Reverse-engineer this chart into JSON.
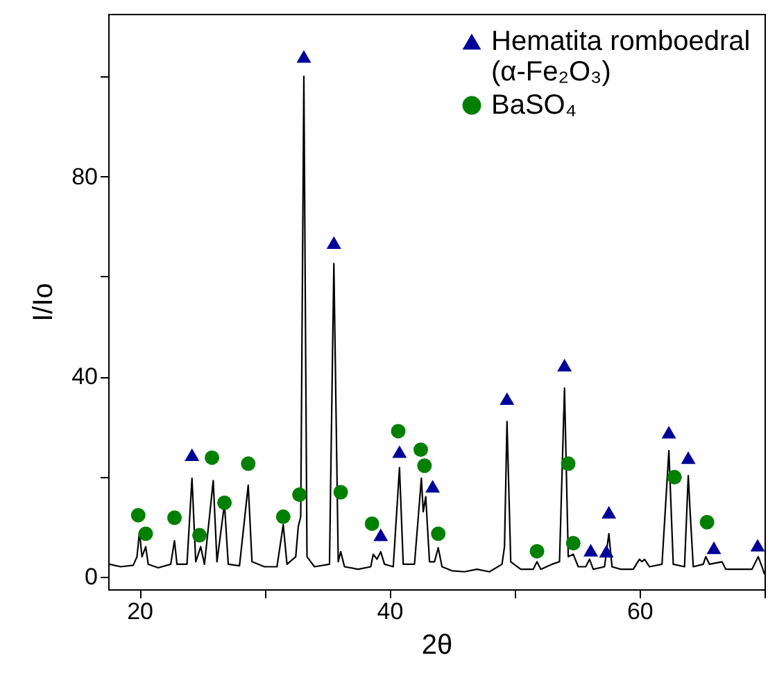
{
  "chart_data": {
    "type": "line",
    "xlabel": "2θ",
    "ylabel": "I/Io",
    "xlim": [
      17.5,
      70
    ],
    "xticks": [
      20,
      {
        "value": 30,
        "label": null
      },
      40,
      {
        "value": 50,
        "label": null
      },
      60,
      {
        "value": 70,
        "label": null
      }
    ],
    "ylim": [
      -2.5,
      112.5
    ],
    "yticks": [
      0,
      {
        "value": 20,
        "label": null
      },
      40,
      {
        "value": 60,
        "label": null
      },
      80,
      {
        "value": 100,
        "label": null
      }
    ],
    "grid": false,
    "legend": "top right",
    "series": [
      {
        "color": "#000000",
        "line_style": "solid",
        "x": [
          17.6,
          18.5,
          19.5,
          19.8,
          20.0,
          20.2,
          20.5,
          20.7,
          21.5,
          22.5,
          22.8,
          23.0,
          23.8,
          24.2,
          24.5,
          24.9,
          25.2,
          25.9,
          26.2,
          26.8,
          27.1,
          28.0,
          28.7,
          29.0,
          30,
          31.0,
          31.5,
          31.8,
          32.5,
          32.7,
          32.9,
          33.15,
          33.4,
          34,
          35.2,
          35.55,
          35.9,
          36.1,
          36.4,
          37.5,
          38.5,
          38.7,
          39.0,
          39.3,
          39.6,
          40.3,
          40.8,
          41.1,
          42,
          42.55,
          42.7,
          42.9,
          43.2,
          43.6,
          43.9,
          44.2,
          45,
          46,
          47,
          48,
          49.0,
          49.2,
          49.4,
          49.7,
          50.5,
          51.5,
          51.8,
          52.1,
          53,
          53.6,
          54.0,
          54.3,
          54.7,
          55.1,
          55.7,
          56.0,
          56.3,
          57.2,
          57.55,
          57.8,
          58.5,
          59.5,
          60.0,
          60.2,
          60.4,
          60.8,
          61.8,
          62.35,
          62.7,
          63.6,
          63.9,
          64.05,
          64.3,
          65.1,
          65.3,
          65.6,
          66.6,
          66.9,
          68,
          69,
          69.5,
          69.8,
          70
        ],
        "values": [
          2.5,
          2,
          2.3,
          4,
          9,
          4,
          6,
          2.5,
          1.8,
          2.5,
          7.2,
          2.5,
          2.5,
          19.7,
          3,
          6,
          2.5,
          19.2,
          3,
          14.6,
          2.5,
          2.2,
          18.3,
          3,
          2,
          2,
          10.4,
          2.5,
          4,
          10,
          12,
          100,
          4,
          2,
          2.5,
          62.6,
          3,
          5,
          2,
          1.5,
          2,
          4.5,
          3.5,
          5,
          2.5,
          2,
          21.8,
          2.5,
          2.5,
          19.7,
          13,
          16,
          3,
          3,
          5.8,
          2,
          1.2,
          1,
          1.5,
          1,
          2.5,
          6,
          31,
          3,
          1.5,
          1.5,
          3,
          1.5,
          2.5,
          3,
          37.7,
          4,
          4.5,
          2,
          2,
          3.5,
          1.5,
          2,
          8.6,
          2,
          1.5,
          1.5,
          3.5,
          3,
          3.5,
          2,
          2.5,
          25.2,
          2.5,
          2,
          20.2,
          13,
          2,
          2.5,
          4,
          2.5,
          3,
          1.5,
          1.5,
          1.5,
          4,
          2,
          0.5
        ]
      },
      {
        "type": "scatter",
        "name": "Hematita romboedral (α-Fe₂O₃)",
        "color": "#000099",
        "marker": "triangle",
        "x": [
          24.2,
          33.15,
          35.55,
          39.3,
          40.8,
          43.45,
          49.4,
          54.0,
          56.1,
          57.35,
          57.55,
          62.35,
          63.9,
          65.95,
          69.45
        ],
        "values": [
          24.4,
          104,
          66.8,
          8.4,
          25,
          18.1,
          35.6,
          42.3,
          5.3,
          5.1,
          12.9,
          28.9,
          23.8,
          5.8,
          6.3
        ]
      },
      {
        "type": "scatter",
        "name": "BaSO₄",
        "color": "#008000",
        "marker": "circle",
        "x": [
          19.9,
          20.5,
          22.8,
          24.8,
          25.8,
          26.8,
          28.7,
          31.5,
          32.8,
          36.1,
          38.6,
          40.7,
          42.5,
          42.8,
          43.9,
          51.8,
          54.3,
          54.7,
          62.8,
          65.4
        ],
        "values": [
          12.3,
          8.6,
          11.8,
          8.3,
          23.8,
          14.8,
          22.6,
          12,
          16.4,
          16.9,
          10.6,
          29.1,
          25.4,
          22.2,
          8.6,
          5.1,
          22.6,
          6.7,
          19.9,
          10.9
        ]
      }
    ]
  }
}
